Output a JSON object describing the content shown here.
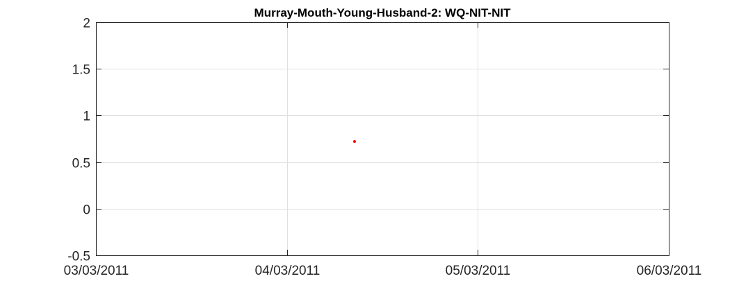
{
  "chart_data": {
    "type": "scatter",
    "title": "Murray-Mouth-Young-Husband-2: WQ-NIT-NIT",
    "xlabel": "",
    "ylabel": "",
    "x_ticks": [
      "03/03/2011",
      "04/03/2011",
      "05/03/2011",
      "06/03/2011"
    ],
    "xlim": [
      "03/03/2011",
      "06/03/2011"
    ],
    "y_ticks": [
      "-0.5",
      "0",
      "0.5",
      "1",
      "1.5",
      "2"
    ],
    "ylim": [
      -0.5,
      2
    ],
    "grid": true,
    "series": [
      {
        "color": "#ff0000",
        "points": [
          {
            "x": "04/03/2011 08:30",
            "y": 0.72
          }
        ]
      }
    ]
  }
}
